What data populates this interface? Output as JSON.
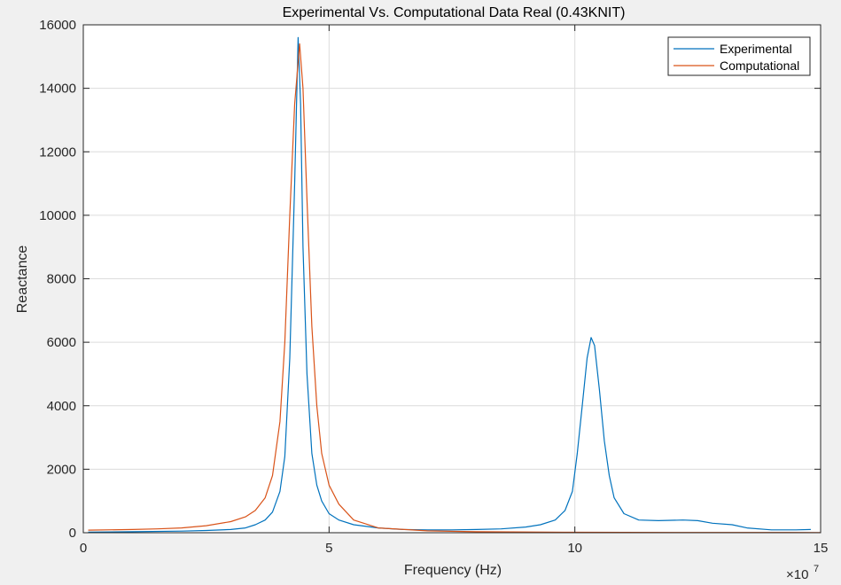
{
  "chart_data": {
    "type": "line",
    "title": "Experimental Vs. Computational Data Real (0.43KNIT)",
    "xlabel": "Frequency (Hz)",
    "ylabel": "Reactance",
    "x_exponent_label": "×10",
    "x_exponent_power": "7",
    "xlim": [
      0,
      15
    ],
    "ylim": [
      0,
      16000
    ],
    "x_ticks": [
      0,
      5,
      10,
      15
    ],
    "x_tick_labels": [
      "0",
      "5",
      "10",
      "15"
    ],
    "y_ticks": [
      0,
      2000,
      4000,
      6000,
      8000,
      10000,
      12000,
      14000,
      16000
    ],
    "y_tick_labels": [
      "0",
      "2000",
      "4000",
      "6000",
      "8000",
      "10000",
      "12000",
      "14000",
      "16000"
    ],
    "grid": true,
    "legend_position": "top-right",
    "series": [
      {
        "name": "Experimental",
        "color": "#0072BD",
        "x": [
          0.1,
          1.0,
          2.0,
          2.5,
          3.0,
          3.3,
          3.5,
          3.7,
          3.85,
          4.0,
          4.1,
          4.2,
          4.3,
          4.37,
          4.42,
          4.47,
          4.55,
          4.65,
          4.75,
          4.85,
          5.0,
          5.2,
          5.5,
          6.0,
          6.5,
          7.0,
          7.5,
          8.0,
          8.5,
          9.0,
          9.3,
          9.6,
          9.8,
          9.95,
          10.05,
          10.15,
          10.25,
          10.33,
          10.4,
          10.5,
          10.6,
          10.7,
          10.8,
          11.0,
          11.3,
          11.7,
          12.2,
          12.5,
          12.8,
          13.2,
          13.5,
          14.0,
          14.5,
          14.8
        ],
        "y": [
          20,
          30,
          50,
          70,
          100,
          150,
          250,
          400,
          650,
          1300,
          2400,
          5500,
          11000,
          15600,
          13500,
          9000,
          5000,
          2500,
          1500,
          1000,
          600,
          400,
          250,
          150,
          100,
          90,
          90,
          100,
          120,
          180,
          250,
          400,
          700,
          1300,
          2500,
          4000,
          5500,
          6150,
          5900,
          4500,
          2900,
          1800,
          1100,
          600,
          400,
          380,
          400,
          380,
          300,
          250,
          150,
          90,
          90,
          100
        ]
      },
      {
        "name": "Computational",
        "color": "#D95319",
        "x": [
          0.1,
          1.0,
          1.5,
          2.0,
          2.5,
          3.0,
          3.3,
          3.5,
          3.7,
          3.85,
          4.0,
          4.1,
          4.2,
          4.3,
          4.4,
          4.47,
          4.55,
          4.65,
          4.75,
          4.85,
          5.0,
          5.2,
          5.5,
          6.0,
          7.0,
          8.0,
          10.0,
          12.0,
          15.0
        ],
        "y": [
          80,
          100,
          120,
          150,
          220,
          350,
          500,
          700,
          1100,
          1800,
          3500,
          6000,
          10000,
          13500,
          15400,
          14000,
          10500,
          6500,
          4000,
          2500,
          1500,
          900,
          400,
          150,
          60,
          30,
          15,
          8,
          5
        ]
      }
    ]
  }
}
